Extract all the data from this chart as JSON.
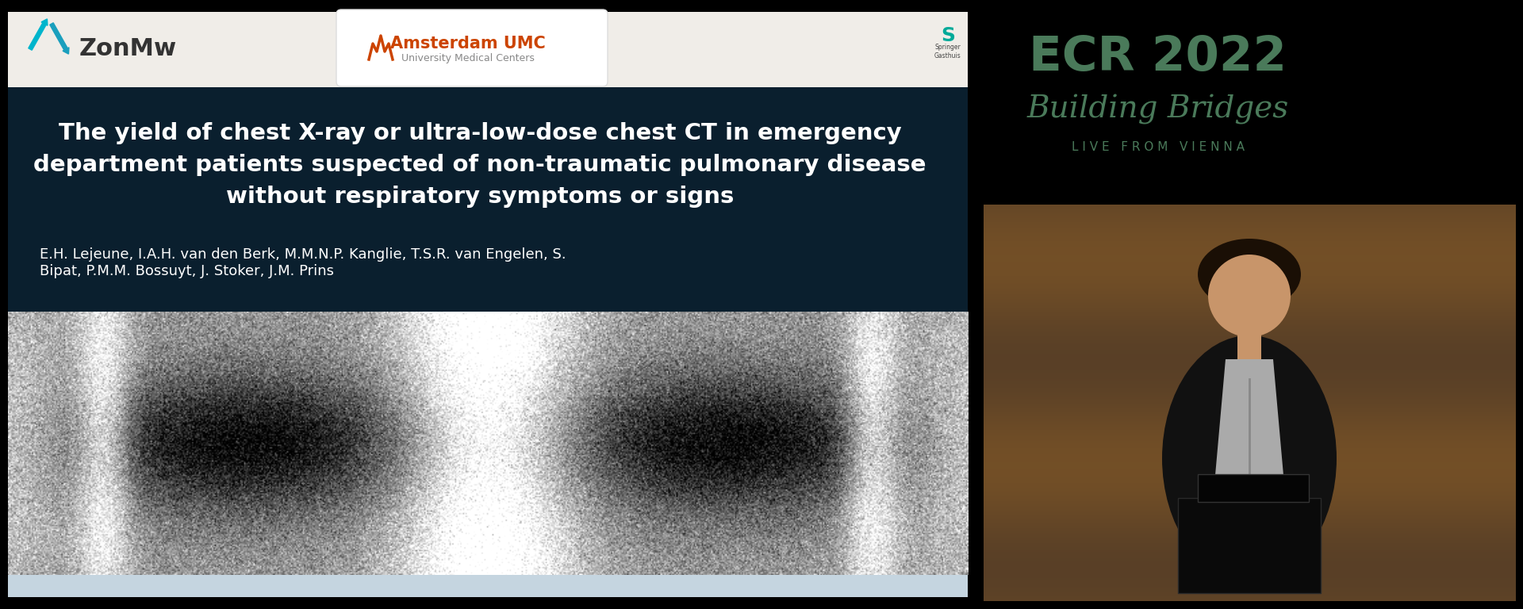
{
  "bg_color": "#000000",
  "slide_bg": "#0a1f2e",
  "header_bg": "#f0ede8",
  "title_text_line1": "The yield of chest X-ray or ultra-low-dose chest CT in emergency",
  "title_text_line2": "department patients suspected of non-traumatic pulmonary disease",
  "title_text_line3": "without respiratory symptoms or signs",
  "authors_text": "E.H. Lejeune, I.A.H. van den Berk, M.M.N.P. Kanglie, T.S.R. van Engelen, S.\nBipat, P.M.M. Bossuyt, J. Stoker, J.M. Prins",
  "title_color": "#ffffff",
  "authors_color": "#ffffff",
  "zonmw_text": "ZonMw",
  "zonmw_color": "#333333",
  "amsterdam_text": "Amsterdam UMC",
  "amsterdam_sub": "University Medical Centers",
  "ecr_text": "ECR 2022",
  "ecr_sub1": "Building Bridges",
  "ecr_sub2": "LIVE FROM VIENNA",
  "bottom_bar_color": "#c5d5e0"
}
